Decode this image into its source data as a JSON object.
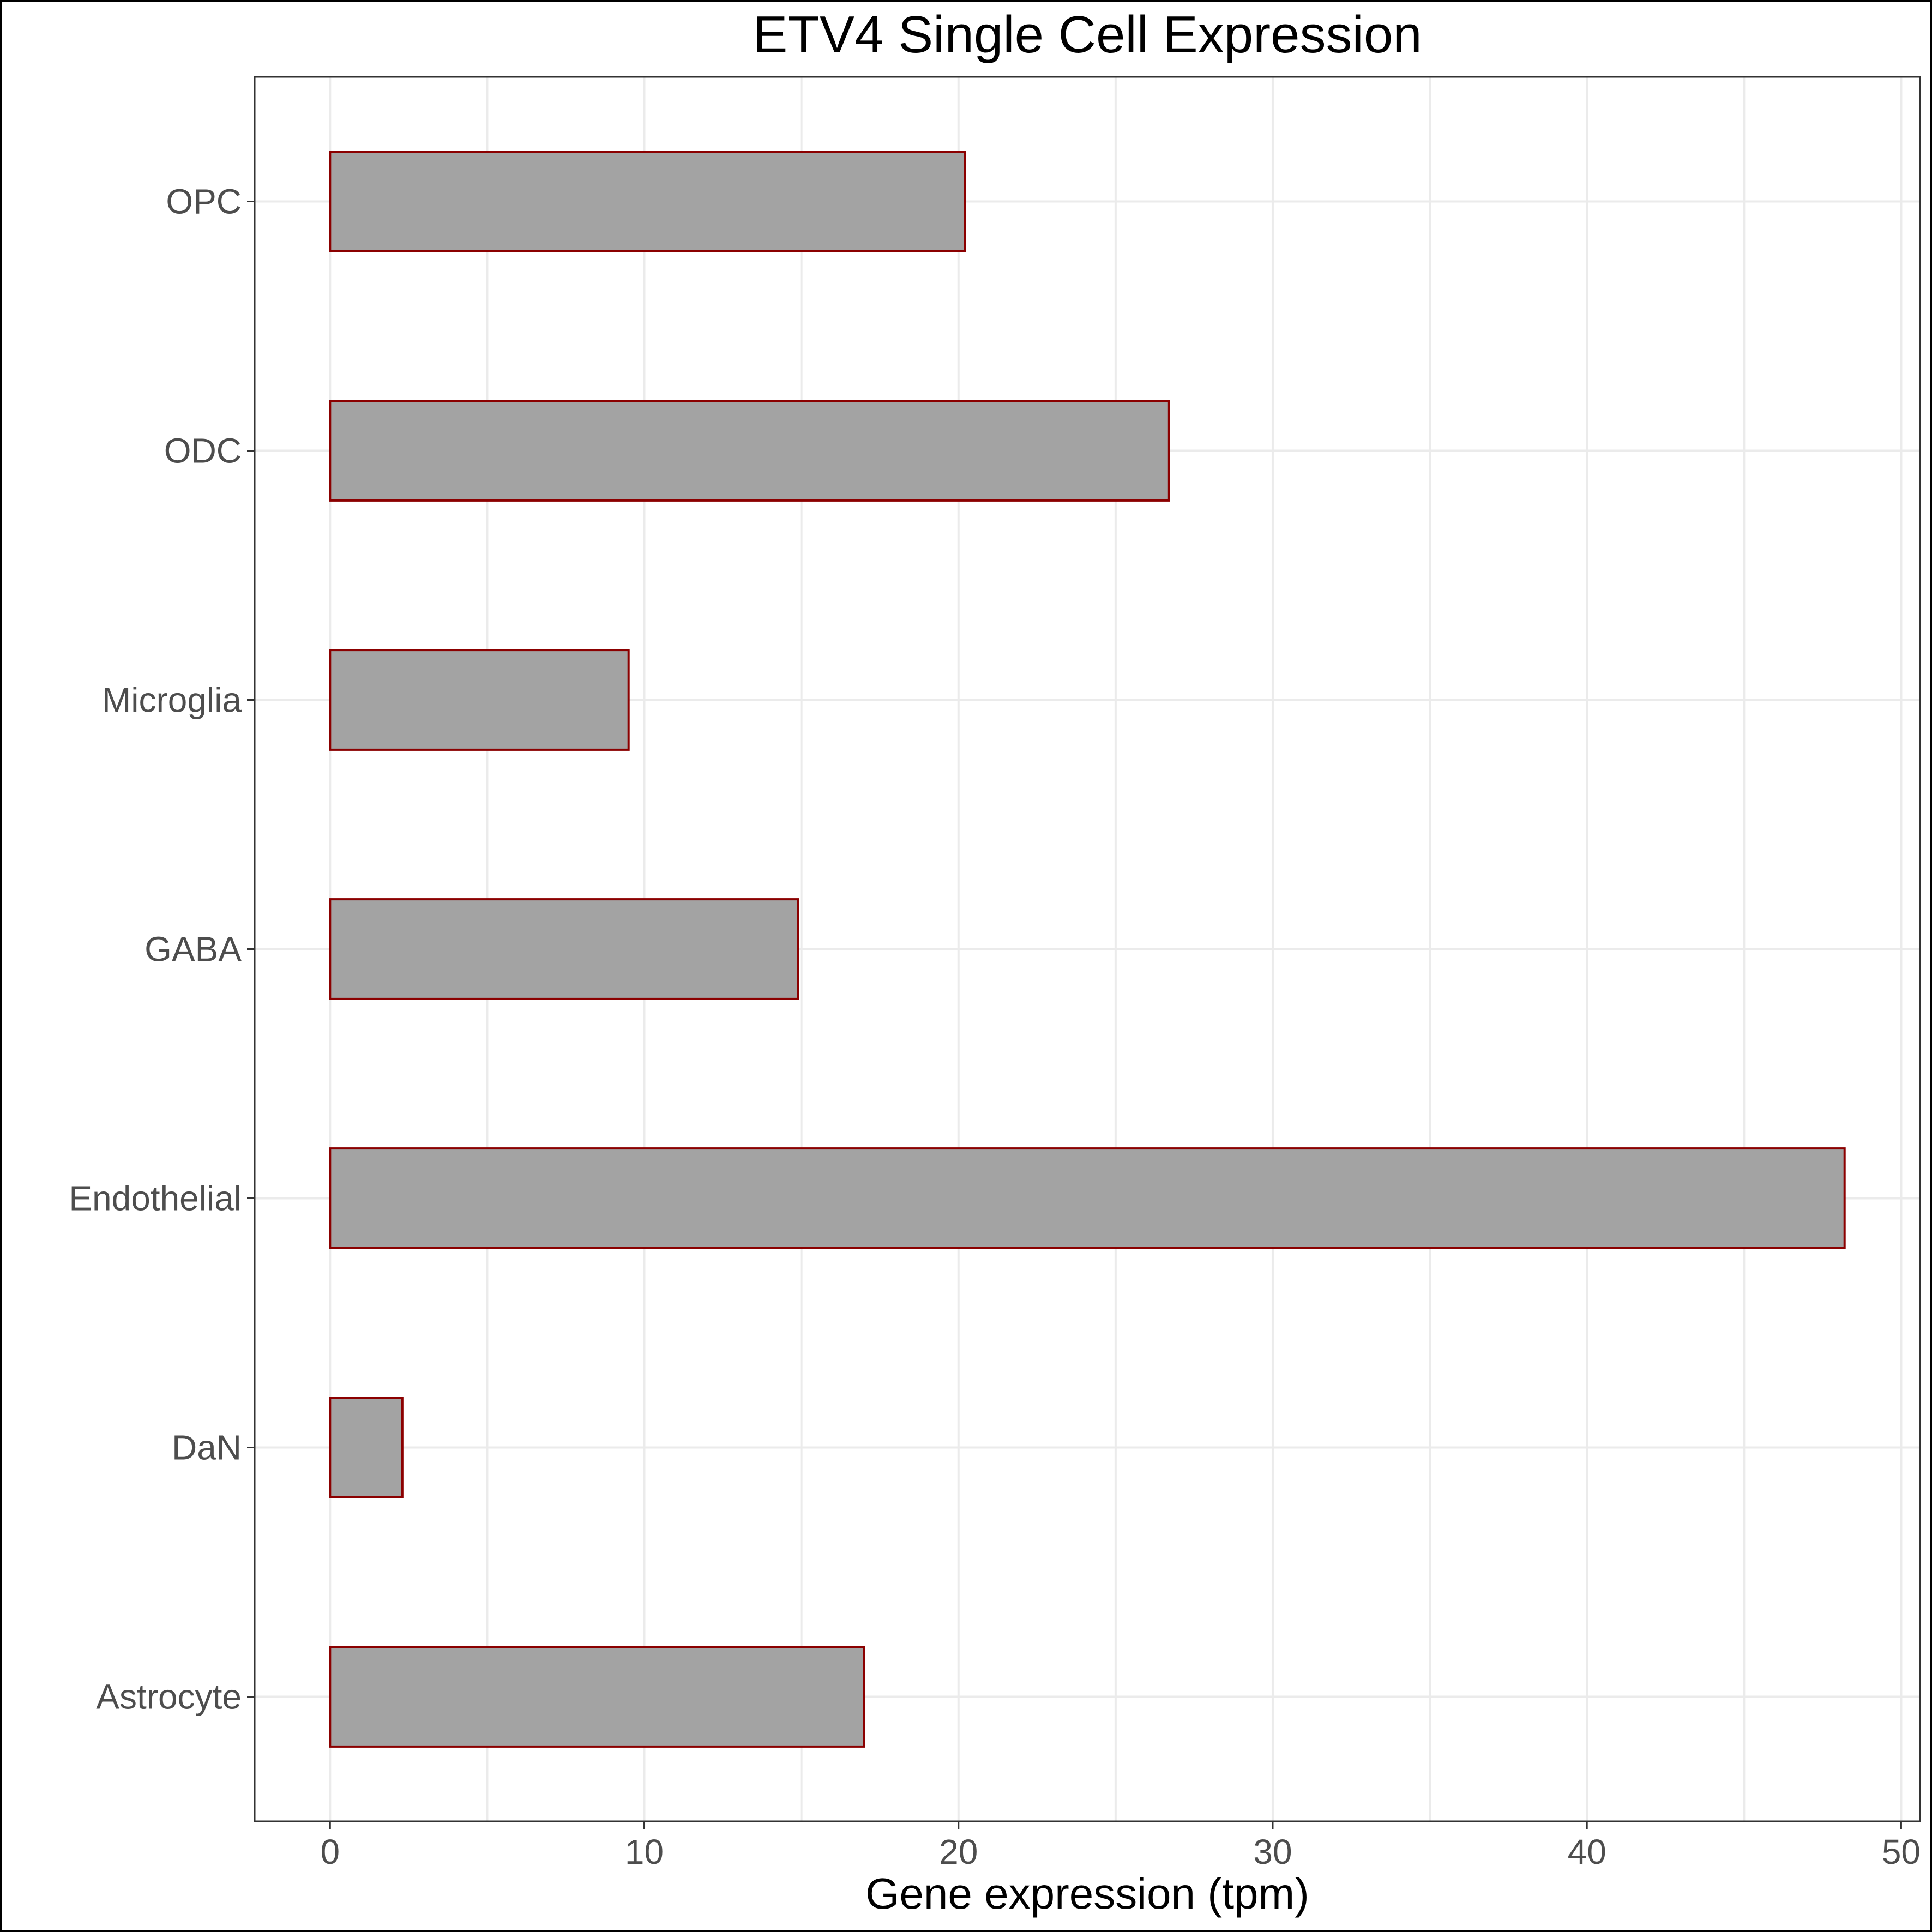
{
  "chart_data": {
    "type": "bar",
    "orientation": "horizontal",
    "title": "ETV4 Single Cell Expression",
    "xlabel": "Gene expression (tpm)",
    "ylabel": "",
    "categories": [
      "Astrocyte",
      "DaN",
      "Endothelial",
      "GABA",
      "Microglia",
      "ODC",
      "OPC"
    ],
    "values": [
      17.0,
      2.3,
      48.2,
      14.9,
      9.5,
      26.7,
      20.2
    ],
    "xlim": [
      -2.4,
      50.6
    ],
    "xticks": [
      0,
      10,
      20,
      30,
      40,
      50
    ],
    "xtick_labels": [
      "0",
      "10",
      "20",
      "30",
      "40",
      "50"
    ],
    "grid": true,
    "legend": "none",
    "bar_fill": "#a3a3a3",
    "bar_outline": "#8b0000"
  }
}
